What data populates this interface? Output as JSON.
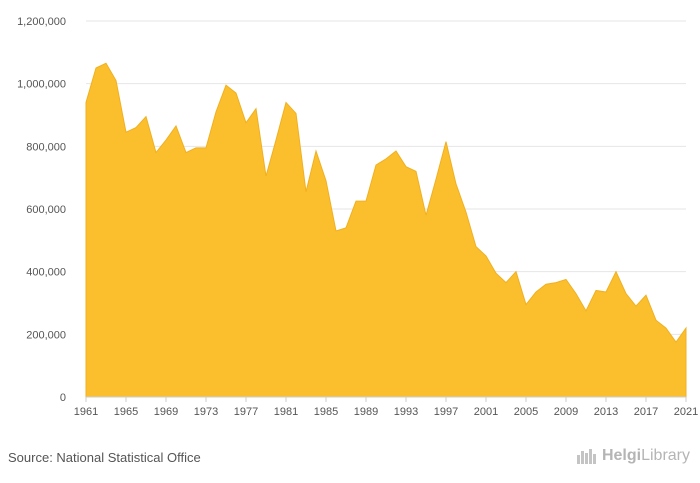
{
  "source": "Source: National Statistical Office",
  "logo": {
    "brand_bold": "Helgi",
    "brand_rest": "Library",
    "icon": "helgi-library-logo-icon"
  },
  "colors": {
    "area_fill": "#FBBF2E",
    "area_stroke": "#F0B020",
    "grid": "#e6e6e6"
  },
  "chart_data": {
    "type": "area",
    "title": "",
    "xlabel": "",
    "ylabel": "",
    "ylim": [
      0,
      1200000
    ],
    "xlim": [
      1961,
      2021
    ],
    "grid": true,
    "y_ticks": [
      "0",
      "200,000",
      "400,000",
      "600,000",
      "800,000",
      "1,000,000",
      "1,200,000"
    ],
    "y_tick_values": [
      0,
      200000,
      400000,
      600000,
      800000,
      1000000,
      1200000
    ],
    "x_ticks": [
      "1961",
      "1965",
      "1969",
      "1973",
      "1977",
      "1981",
      "1985",
      "1989",
      "1993",
      "1997",
      "2001",
      "2005",
      "2009",
      "2013",
      "2017",
      "2021"
    ],
    "x_tick_values": [
      1961,
      1965,
      1969,
      1973,
      1977,
      1981,
      1985,
      1989,
      1993,
      1997,
      2001,
      2005,
      2009,
      2013,
      2017,
      2021
    ],
    "x": [
      1961,
      1962,
      1963,
      1964,
      1965,
      1966,
      1967,
      1968,
      1969,
      1970,
      1971,
      1972,
      1973,
      1974,
      1975,
      1976,
      1977,
      1978,
      1979,
      1980,
      1981,
      1982,
      1983,
      1984,
      1985,
      1986,
      1987,
      1988,
      1989,
      1990,
      1991,
      1992,
      1993,
      1994,
      1995,
      1996,
      1997,
      1998,
      1999,
      2000,
      2001,
      2002,
      2003,
      2004,
      2005,
      2006,
      2007,
      2008,
      2009,
      2010,
      2011,
      2012,
      2013,
      2014,
      2015,
      2016,
      2017,
      2018,
      2019,
      2020,
      2021
    ],
    "values": [
      940000,
      1050000,
      1065000,
      1010000,
      845000,
      860000,
      895000,
      780000,
      820000,
      865000,
      780000,
      795000,
      795000,
      910000,
      995000,
      970000,
      875000,
      920000,
      705000,
      820000,
      940000,
      905000,
      655000,
      785000,
      690000,
      530000,
      540000,
      625000,
      625000,
      740000,
      760000,
      785000,
      735000,
      720000,
      580000,
      695000,
      815000,
      680000,
      590000,
      480000,
      450000,
      395000,
      365000,
      400000,
      295000,
      335000,
      360000,
      365000,
      375000,
      330000,
      275000,
      340000,
      335000,
      400000,
      330000,
      290000,
      325000,
      245000,
      220000,
      175000,
      220000
    ]
  }
}
